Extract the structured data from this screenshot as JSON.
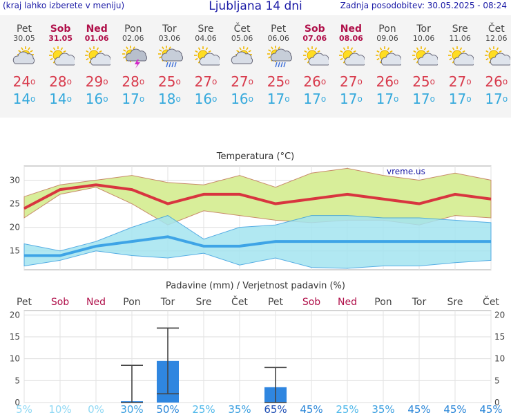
{
  "header": {
    "hint": "(kraj lahko izberete v meniju)",
    "title": "Ljubljana 14 dni",
    "updated": "Zadnja posodobitev: 30.05.2025 - 08:24"
  },
  "days": [
    {
      "name": "Pet",
      "date": "30.05",
      "weekend": false,
      "icon": "partly-cloudy-icon",
      "tmax": "24",
      "tmin": "14"
    },
    {
      "name": "Sob",
      "date": "31.05",
      "weekend": true,
      "icon": "sun-cloud-icon",
      "tmax": "28",
      "tmin": "14"
    },
    {
      "name": "Ned",
      "date": "01.06",
      "weekend": true,
      "icon": "sun-cloud-icon",
      "tmax": "29",
      "tmin": "16"
    },
    {
      "name": "Pon",
      "date": "02.06",
      "weekend": false,
      "icon": "thunderstorm-icon",
      "tmax": "28",
      "tmin": "17"
    },
    {
      "name": "Tor",
      "date": "03.06",
      "weekend": false,
      "icon": "sun-rain-icon",
      "tmax": "25",
      "tmin": "18"
    },
    {
      "name": "Sre",
      "date": "04.06",
      "weekend": false,
      "icon": "sun-cloud-icon",
      "tmax": "27",
      "tmin": "16"
    },
    {
      "name": "Čet",
      "date": "05.06",
      "weekend": false,
      "icon": "partly-cloudy-icon",
      "tmax": "27",
      "tmin": "16"
    },
    {
      "name": "Pet",
      "date": "06.06",
      "weekend": false,
      "icon": "sun-rain-icon",
      "tmax": "25",
      "tmin": "17"
    },
    {
      "name": "Sob",
      "date": "07.06",
      "weekend": true,
      "icon": "sun-cloud-icon",
      "tmax": "26",
      "tmin": "17"
    },
    {
      "name": "Ned",
      "date": "08.06",
      "weekend": true,
      "icon": "sun-cloud-icon",
      "tmax": "27",
      "tmin": "17"
    },
    {
      "name": "Pon",
      "date": "09.06",
      "weekend": false,
      "icon": "sun-cloud-icon",
      "tmax": "26",
      "tmin": "17"
    },
    {
      "name": "Tor",
      "date": "10.06",
      "weekend": false,
      "icon": "sun-cloud-icon",
      "tmax": "25",
      "tmin": "17"
    },
    {
      "name": "Sre",
      "date": "11.06",
      "weekend": false,
      "icon": "sun-cloud-icon",
      "tmax": "27",
      "tmin": "17"
    },
    {
      "name": "Čet",
      "date": "12.06",
      "weekend": false,
      "icon": "sun-cloud-icon",
      "tmax": "26",
      "tmin": "17"
    }
  ],
  "degree_symbol": "o",
  "chart_data": [
    {
      "type": "line",
      "title": "Temperatura (°C)",
      "watermark": "vreme.us",
      "ylim": [
        11,
        33
      ],
      "yticks": [
        15,
        20,
        25,
        30
      ],
      "grid": true,
      "series": [
        {
          "values": [
            24,
            28,
            29,
            28,
            25,
            27,
            27,
            25,
            26,
            27,
            26,
            25,
            27,
            26
          ],
          "color": "#d8353f"
        },
        {
          "values": [
            14,
            14,
            16,
            17,
            18,
            16,
            16,
            17,
            17,
            17,
            17,
            17,
            17,
            17
          ],
          "color": "#3ea4e6"
        }
      ],
      "max_band_upper": [
        26.5,
        29,
        30,
        31,
        29.5,
        29,
        31,
        28.5,
        31.5,
        32.5,
        31,
        30,
        31.5,
        30
      ],
      "max_band_lower": [
        22,
        27,
        28.5,
        25,
        20.5,
        23.5,
        22.5,
        21.5,
        21,
        21.5,
        21.5,
        20.5,
        22.5,
        22
      ],
      "min_band_upper": [
        16.5,
        15,
        17,
        20,
        22.5,
        17.5,
        20,
        20.5,
        22.5,
        22.5,
        22,
        22,
        21.5,
        21
      ],
      "min_band_lower": [
        11.8,
        13,
        15,
        14,
        13.5,
        14.5,
        12,
        13.5,
        11.5,
        11.3,
        11.8,
        11.8,
        12.5,
        13
      ],
      "colors": {
        "max_band": "#d8ee9a",
        "min_band": "#a4e4f0",
        "overlap": "#8fd17e"
      }
    },
    {
      "type": "bar",
      "title": "Padavine (mm) / Verjetnost padavin (%)",
      "categories": [
        "Pet",
        "Sob",
        "Ned",
        "Pon",
        "Tor",
        "Sre",
        "Čet",
        "Pet",
        "Sob",
        "Ned",
        "Pon",
        "Tor",
        "Sre",
        "Čet"
      ],
      "weekend": [
        false,
        true,
        true,
        false,
        false,
        false,
        false,
        false,
        true,
        true,
        false,
        false,
        false,
        false
      ],
      "values": [
        0,
        0,
        0,
        0.3,
        9.5,
        0,
        0,
        3.5,
        0,
        0,
        0,
        0,
        0,
        0
      ],
      "error_low": [
        null,
        null,
        null,
        0,
        2,
        null,
        null,
        0,
        null,
        null,
        null,
        null,
        null,
        null
      ],
      "error_high": [
        null,
        null,
        null,
        8.5,
        17,
        null,
        null,
        8,
        null,
        null,
        null,
        null,
        null,
        null
      ],
      "probability": [
        "5%",
        "10%",
        "0%",
        "30%",
        "50%",
        "25%",
        "35%",
        "65%",
        "45%",
        "25%",
        "35%",
        "45%",
        "45%",
        "45%"
      ],
      "ylim": [
        0,
        21
      ],
      "yticks": [
        0,
        5,
        10,
        15,
        20
      ],
      "grid": true,
      "colors": {
        "bar": "#2f86e0",
        "error": "#444444"
      }
    }
  ]
}
